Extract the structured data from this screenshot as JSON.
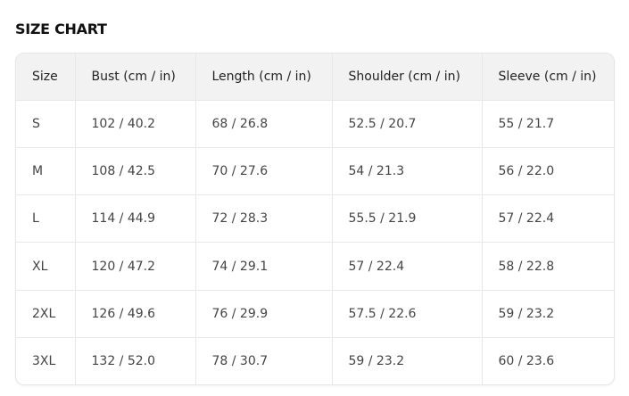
{
  "title": "SIZE CHART",
  "table": {
    "headers": [
      "Size",
      "Bust (cm / in)",
      "Length (cm / in)",
      "Shoulder (cm / in)",
      "Sleeve (cm / in)"
    ],
    "rows": [
      [
        "S",
        "102 / 40.2",
        "68 / 26.8",
        "52.5 / 20.7",
        "55 / 21.7"
      ],
      [
        "M",
        "108 / 42.5",
        "70 / 27.6",
        "54 / 21.3",
        "56 / 22.0"
      ],
      [
        "L",
        "114 / 44.9",
        "72 / 28.3",
        "55.5 / 21.9",
        "57 / 22.4"
      ],
      [
        "XL",
        "120 / 47.2",
        "74 / 29.1",
        "57 / 22.4",
        "58 / 22.8"
      ],
      [
        "2XL",
        "126 / 49.6",
        "76 / 29.9",
        "57.5 / 22.6",
        "59 / 23.2"
      ],
      [
        "3XL",
        "132 / 52.0",
        "78 / 30.7",
        "59 / 23.2",
        "60 / 23.6"
      ]
    ]
  }
}
